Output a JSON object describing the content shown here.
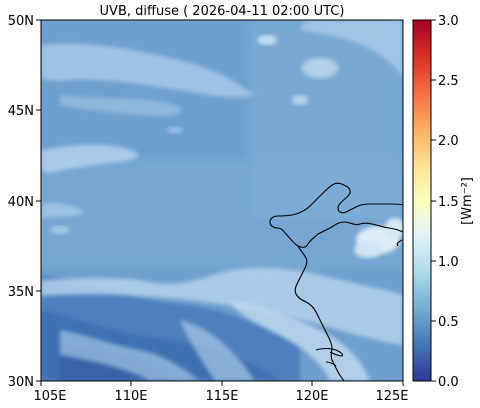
{
  "title": "UVB, diffuse ( 2026-04-11 02:00 UTC)",
  "map": {
    "lat_ticks": [
      "50N",
      "45N",
      "40N",
      "35N",
      "30N"
    ],
    "lon_ticks": [
      "105E",
      "110E",
      "115E",
      "120E",
      "125E"
    ],
    "extent": {
      "lon": [
        105,
        125
      ],
      "lat": [
        30,
        50
      ]
    },
    "coastline_color": "#000000"
  },
  "colorbar": {
    "label": "[Wm⁻²]",
    "ticks": [
      "3.0",
      "2.5",
      "2.0",
      "1.5",
      "1.0",
      "0.5",
      "0.0"
    ],
    "range": [
      0.0,
      3.0
    ],
    "colormap": "RdYlBu_r",
    "stops": [
      "#313695",
      "#4575b4",
      "#74add1",
      "#abd9e9",
      "#e0f3f8",
      "#ffffbf",
      "#fee090",
      "#fdae61",
      "#f46d43",
      "#d73027",
      "#a50026"
    ]
  },
  "field": {
    "background_color": "#6f9fcd",
    "cloud_color": "#bcd7ee",
    "low_color": "#3e6fb0"
  }
}
